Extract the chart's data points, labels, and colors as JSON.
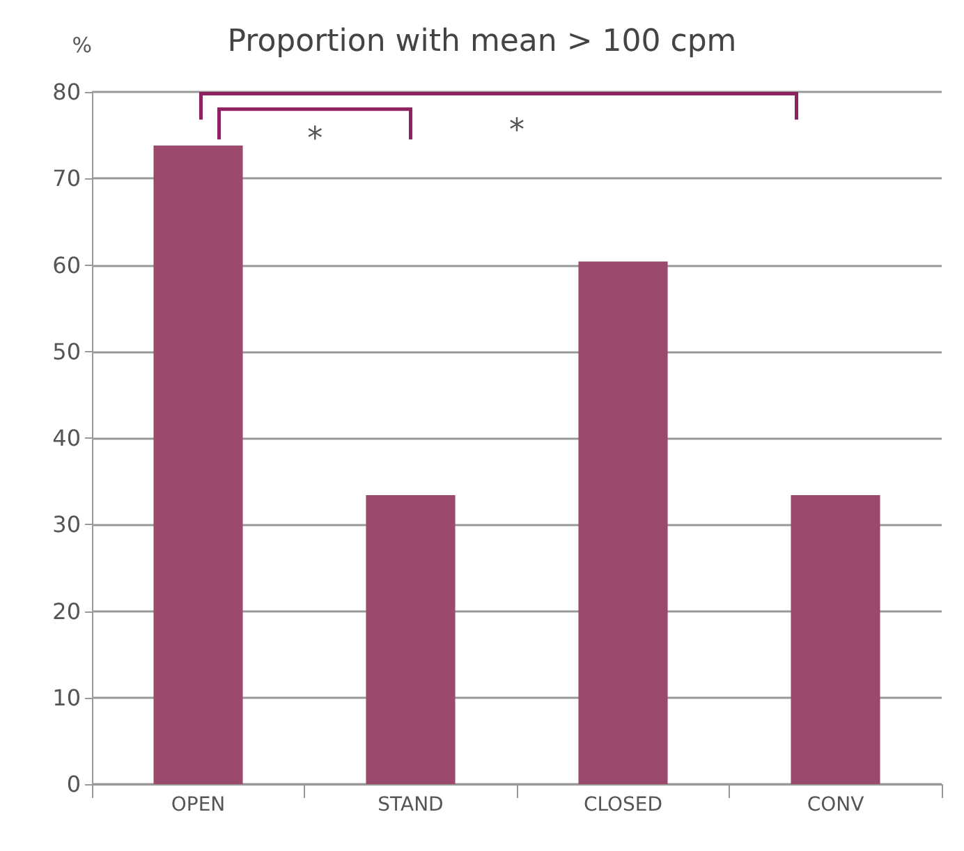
{
  "chart_data": {
    "type": "bar",
    "title": "Proportion with mean > 100 cpm",
    "ylabel": "%",
    "categories": [
      "OPEN",
      "STAND",
      "CLOSED",
      "CONV"
    ],
    "values": [
      73.8,
      33.4,
      60.4,
      33.4
    ],
    "color": "#9b4a6e",
    "ylim": [
      0,
      80
    ],
    "yticks": [
      0,
      10,
      20,
      30,
      40,
      50,
      60,
      70,
      80
    ],
    "grid": "y",
    "annotations": [
      "*",
      "*"
    ]
  }
}
